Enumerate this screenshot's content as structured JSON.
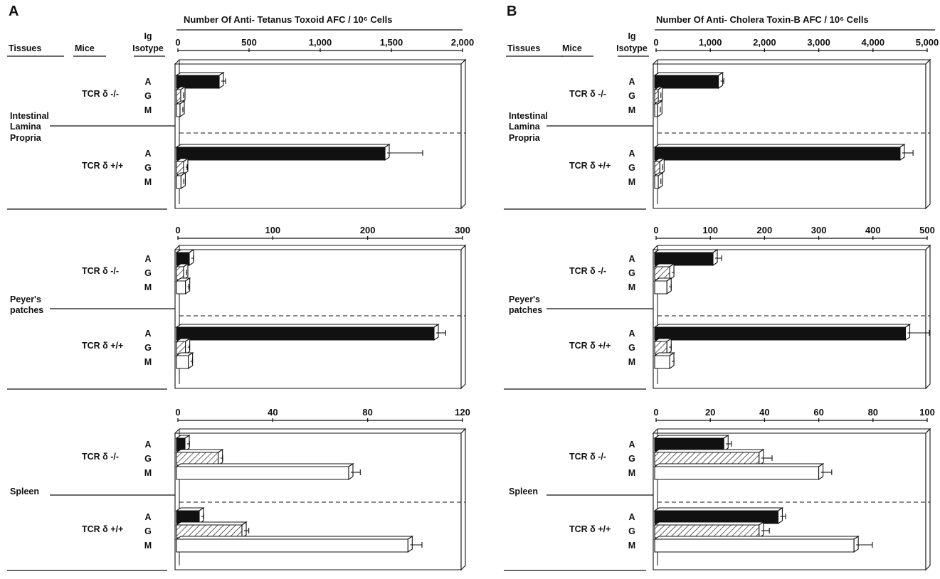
{
  "panels": [
    {
      "letter": "A",
      "title": "Number Of Anti- Tetanus Toxoid AFC / 10⁶ Cells",
      "col_tissues": "Tissues",
      "col_mice": "Mice",
      "col_ig": "Ig",
      "col_isotype": "Isotype"
    },
    {
      "letter": "B",
      "title": "Number Of Anti- Cholera Toxin-B AFC / 10⁶ Cells",
      "col_tissues": "Tissues",
      "col_mice": "Mice",
      "col_ig": "Ig",
      "col_isotype": "Isotype"
    }
  ],
  "mice_labels": {
    "ko": "TCR δ -/-",
    "wt": "TCR δ +/+"
  },
  "isotypes": [
    "A",
    "G",
    "M"
  ],
  "chart_data": [
    {
      "type": "bar",
      "panel": "A",
      "tissue": "Intestinal Lamina Propria",
      "xlim": [
        0,
        2000
      ],
      "ticks": [
        "0",
        "500",
        "1,000",
        "1,500",
        "2,000"
      ],
      "categories": [
        "A",
        "G",
        "M"
      ],
      "series": [
        {
          "name": "TCR δ -/-",
          "values": [
            290,
            20,
            15
          ],
          "errors": [
            30,
            5,
            5
          ]
        },
        {
          "name": "TCR δ +/+",
          "values": [
            1455,
            40,
            22
          ],
          "errors": [
            250,
            10,
            5
          ]
        }
      ]
    },
    {
      "type": "bar",
      "panel": "A",
      "tissue": "Peyer's patches",
      "xlim": [
        0,
        300
      ],
      "ticks": [
        "0",
        "100",
        "200",
        "300"
      ],
      "categories": [
        "A",
        "G",
        "M"
      ],
      "series": [
        {
          "name": "TCR δ -/-",
          "values": [
            12,
            6,
            8
          ],
          "errors": [
            2,
            1,
            1
          ]
        },
        {
          "name": "TCR δ +/+",
          "values": [
            270,
            8,
            11
          ],
          "errors": [
            10,
            2,
            2
          ]
        }
      ]
    },
    {
      "type": "bar",
      "panel": "A",
      "tissue": "Spleen",
      "xlim": [
        0,
        120
      ],
      "ticks": [
        "0",
        "40",
        "80",
        "120"
      ],
      "categories": [
        "A",
        "G",
        "M"
      ],
      "series": [
        {
          "name": "TCR δ -/-",
          "values": [
            3,
            17,
            72
          ],
          "errors": [
            1,
            1,
            4
          ]
        },
        {
          "name": "TCR δ +/+",
          "values": [
            9,
            27,
            97
          ],
          "errors": [
            1,
            2,
            5
          ]
        }
      ]
    },
    {
      "type": "bar",
      "panel": "B",
      "tissue": "Intestinal Lamina Propria",
      "xlim": [
        0,
        5000
      ],
      "ticks": [
        "0",
        "1,000",
        "2,000",
        "3,000",
        "4,000",
        "5,000"
      ],
      "categories": [
        "A",
        "G",
        "M"
      ],
      "series": [
        {
          "name": "TCR δ -/-",
          "values": [
            1150,
            40,
            30
          ],
          "errors": [
            60,
            10,
            10
          ]
        },
        {
          "name": "TCR δ +/+",
          "values": [
            4500,
            70,
            40
          ],
          "errors": [
            200,
            10,
            10
          ]
        }
      ]
    },
    {
      "type": "bar",
      "panel": "B",
      "tissue": "Peyer's patches",
      "xlim": [
        0,
        500
      ],
      "ticks": [
        "0",
        "100",
        "200",
        "300",
        "400",
        "500"
      ],
      "categories": [
        "A",
        "G",
        "M"
      ],
      "series": [
        {
          "name": "TCR δ -/-",
          "values": [
            105,
            25,
            20
          ],
          "errors": [
            12,
            4,
            4
          ]
        },
        {
          "name": "TCR δ +/+",
          "values": [
            460,
            20,
            25
          ],
          "errors": [
            40,
            4,
            4
          ]
        }
      ]
    },
    {
      "type": "bar",
      "panel": "B",
      "tissue": "Spleen",
      "xlim": [
        0,
        100
      ],
      "ticks": [
        "0",
        "20",
        "40",
        "60",
        "80",
        "100"
      ],
      "categories": [
        "A",
        "G",
        "M"
      ],
      "series": [
        {
          "name": "TCR δ -/-",
          "values": [
            25,
            38,
            60
          ],
          "errors": [
            2,
            4,
            4
          ]
        },
        {
          "name": "TCR δ +/+",
          "values": [
            45,
            38,
            73
          ],
          "errors": [
            2,
            3,
            6
          ]
        }
      ]
    }
  ],
  "style": {
    "fill_A": "#111111",
    "fill_G": "hatched",
    "fill_M": "#ffffff",
    "ink": "#111111"
  }
}
